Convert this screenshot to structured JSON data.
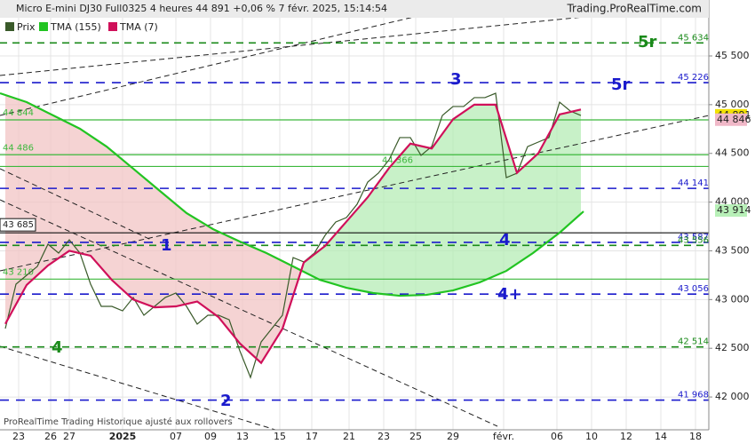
{
  "header": {
    "title": "Micro E-mini DJ30 Full0325 4 heures 44 891 +0,06 % 7 févr. 2025, 15:14:54",
    "source": "Trading.ProRealTime.com"
  },
  "footer": "ProRealTime Trading  Historique ajusté aux rollovers",
  "chart_data": {
    "type": "line",
    "x": [
      1,
      3,
      5,
      7,
      9,
      11,
      13,
      15,
      17,
      19,
      21,
      23,
      25,
      27,
      29,
      31,
      33,
      35,
      37,
      39,
      41,
      43,
      45,
      47,
      49,
      51,
      53,
      55,
      57,
      59,
      61,
      63,
      65,
      67,
      69,
      71,
      73,
      75,
      77,
      79,
      81,
      83,
      85,
      87,
      89,
      91,
      93,
      95,
      97,
      99,
      101,
      103,
      105,
      107,
      109
    ],
    "series": [
      {
        "name": "Prix",
        "color": "#3a5a2a",
        "values": [
          42702,
          43158,
          43249,
          43340,
          43568,
          43477,
          43613,
          43477,
          43158,
          42930,
          42930,
          42884,
          43021,
          42839,
          42930,
          43021,
          43067,
          42930,
          42748,
          42839,
          42839,
          42793,
          42474,
          42201,
          42565,
          42702,
          42839,
          43431,
          43386,
          43477,
          43659,
          43796,
          43841,
          43978,
          44206,
          44297,
          44434,
          44662,
          44662,
          44480,
          44570,
          44889,
          44981,
          44981,
          45072,
          45072,
          45117,
          44251,
          44297,
          44570,
          44616,
          44662,
          45026,
          44935,
          44889
        ]
      },
      {
        "name": "TMA (155)",
        "color": "#22c422",
        "x": [
          0,
          5,
          10,
          15,
          20,
          25,
          30,
          35,
          40,
          45,
          50,
          55,
          60,
          65,
          70,
          75,
          80,
          85,
          90,
          95,
          100,
          105,
          109.5
        ],
        "values": [
          45117,
          45026,
          44889,
          44753,
          44570,
          44343,
          44115,
          43887,
          43722,
          43595,
          43477,
          43340,
          43203,
          43121,
          43067,
          43039,
          43048,
          43094,
          43176,
          43294,
          43477,
          43686,
          43905
        ]
      },
      {
        "name": "TMA (7)",
        "color": "#d0105a",
        "x": [
          1,
          5,
          9,
          13,
          17,
          21,
          25,
          29,
          33,
          37,
          41,
          45,
          49,
          53,
          57,
          61,
          65,
          69,
          73,
          77,
          81,
          85,
          89,
          93,
          97,
          101,
          105,
          109
        ],
        "values": [
          42750,
          43150,
          43350,
          43500,
          43450,
          43200,
          43000,
          42920,
          42930,
          42980,
          42820,
          42550,
          42350,
          42700,
          43380,
          43550,
          43800,
          44050,
          44350,
          44600,
          44550,
          44850,
          45000,
          45000,
          44300,
          44500,
          44900,
          44950
        ]
      }
    ],
    "xlim": [
      0,
      133
    ],
    "xticks": [
      {
        "value": 3.5,
        "label": "23"
      },
      {
        "value": 9.5,
        "label": "26"
      },
      {
        "value": 13,
        "label": "27"
      },
      {
        "value": 23,
        "label": "2025"
      },
      {
        "value": 33,
        "label": "07"
      },
      {
        "value": 39.5,
        "label": "09"
      },
      {
        "value": 45.5,
        "label": "13"
      },
      {
        "value": 52.5,
        "label": "15"
      },
      {
        "value": 58.5,
        "label": "17"
      },
      {
        "value": 65.5,
        "label": "21"
      },
      {
        "value": 72,
        "label": "23"
      },
      {
        "value": 78,
        "label": "25"
      },
      {
        "value": 85,
        "label": "29"
      },
      {
        "value": 94.5,
        "label": "févr."
      },
      {
        "value": 104.5,
        "label": "06"
      },
      {
        "value": 111,
        "label": "10"
      },
      {
        "value": 117.5,
        "label": "12"
      },
      {
        "value": 124,
        "label": "14"
      },
      {
        "value": 130.5,
        "label": "18"
      }
    ],
    "ylim": [
      41700,
      45910
    ],
    "yticks": [
      {
        "value": 42000,
        "label": "42 000"
      },
      {
        "value": 42500,
        "label": "42 500"
      },
      {
        "value": 43000,
        "label": "43 000"
      },
      {
        "value": 43500,
        "label": "43 500"
      },
      {
        "value": 44000,
        "label": "44 000"
      },
      {
        "value": 44500,
        "label": "44 500"
      },
      {
        "value": 45000,
        "label": "45 000"
      },
      {
        "value": 45500,
        "label": "45 500"
      }
    ],
    "grid": true,
    "levels": [
      {
        "value": 45634,
        "label": "45 634",
        "color": "#1a8a1a",
        "style": "dash",
        "side": "right"
      },
      {
        "value": 45226,
        "label": "45 226",
        "color": "#1a1acc",
        "style": "dash",
        "side": "right"
      },
      {
        "value": 44844,
        "label": "44 844",
        "color": "#3cb83c",
        "style": "solid",
        "side": "left"
      },
      {
        "value": 44486,
        "label": "44 486",
        "color": "#3cb83c",
        "style": "solid",
        "side": "left"
      },
      {
        "value": 44366,
        "label": "44 366",
        "color": "#3cb83c",
        "style": "solid",
        "side": "mid"
      },
      {
        "value": 44141,
        "label": "44 141",
        "color": "#1a1acc",
        "style": "dash",
        "side": "right"
      },
      {
        "value": 43685,
        "label": "43 685",
        "color": "#111111",
        "style": "solid",
        "side": "box"
      },
      {
        "value": 43587,
        "label": "43 587",
        "color": "#1a1acc",
        "style": "dash",
        "side": "right"
      },
      {
        "value": 43556,
        "label": "43 556",
        "color": "#1a8a1a",
        "style": "dash",
        "side": "right"
      },
      {
        "value": 43210,
        "label": "43 210",
        "color": "#3cb83c",
        "style": "solid",
        "side": "left"
      },
      {
        "value": 43056,
        "label": "43 056",
        "color": "#1a1acc",
        "style": "dash",
        "side": "right"
      },
      {
        "value": 42514,
        "label": "42 514",
        "color": "#1a8a1a",
        "style": "dash",
        "side": "right"
      },
      {
        "value": 41968,
        "label": "41 968",
        "color": "#1a1acc",
        "style": "dash",
        "side": "right"
      }
    ],
    "price_tags": [
      {
        "value": 44891,
        "label": "44 891",
        "color": "#f2e200"
      },
      {
        "value": 44846,
        "label": "44 846",
        "color": "#f0b8c8"
      },
      {
        "value": 43914,
        "label": "43 914",
        "color": "#b8f0b8"
      }
    ],
    "annotations": [
      "5r",
      "5r",
      "3",
      "1",
      "4",
      "2",
      "4",
      "4+"
    ]
  }
}
